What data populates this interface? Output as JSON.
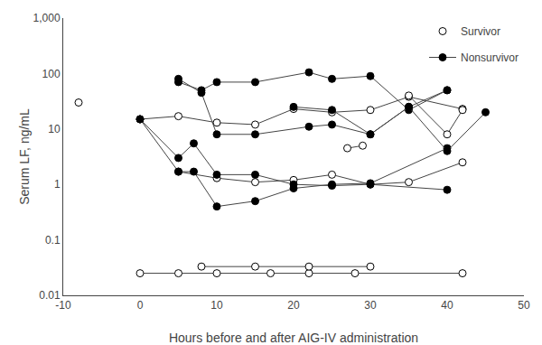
{
  "chart_data": {
    "type": "line",
    "xlabel": "Hours before and after AIG-IV administration",
    "ylabel": "Serum LF, ng/mL",
    "log": "y",
    "grid": false,
    "legend": "upper right",
    "color": "#444444",
    "xlim": [
      -10,
      50
    ],
    "ylim": [
      0.01,
      1000
    ],
    "xticks": [
      -10,
      0,
      10,
      20,
      30,
      40,
      50
    ],
    "yticks": [
      0.01,
      0.1,
      1,
      10,
      100,
      {
        "value": 1000,
        "label": "1,000"
      }
    ],
    "series": [
      {
        "name": "Survivor",
        "marker": "circle-open",
        "line_style": "none",
        "x": [
          -8
        ],
        "values": [
          30
        ]
      },
      {
        "name": "Survivor",
        "marker": "circle-open",
        "line_style": "solid",
        "x": [
          0,
          5,
          10,
          17,
          22,
          28,
          42
        ],
        "values": [
          0.025,
          0.025,
          0.025,
          0.025,
          0.025,
          0.025,
          0.025
        ]
      },
      {
        "name": "Survivor",
        "marker": "circle-open",
        "line_style": "solid",
        "x": [
          8,
          15,
          22,
          30
        ],
        "values": [
          0.033,
          0.033,
          0.033,
          0.033
        ]
      },
      {
        "name": "Survivor",
        "marker": "circle-open",
        "line_style": "solid",
        "x": [
          0,
          5,
          10,
          15,
          20,
          25,
          30,
          35,
          42
        ],
        "values": [
          15,
          17,
          13,
          12,
          23,
          20,
          22,
          38,
          23
        ]
      },
      {
        "name": "Survivor",
        "marker": "circle-open",
        "line_style": "solid",
        "x": [
          5,
          10,
          15,
          20,
          25,
          30,
          35,
          42
        ],
        "values": [
          1.7,
          1.3,
          1.1,
          1.2,
          1.5,
          1.0,
          1.1,
          2.5
        ]
      },
      {
        "name": "Survivor",
        "marker": "circle-open",
        "line_style": "solid",
        "x": [
          27,
          29
        ],
        "values": [
          4.5,
          5.0
        ]
      },
      {
        "name": "Survivor",
        "marker": "circle-open",
        "line_style": "solid",
        "x": [
          35,
          40,
          42
        ],
        "values": [
          40,
          8,
          22
        ]
      },
      {
        "name": "Nonsurvivor",
        "marker": "circle",
        "line_style": "solid",
        "x": [
          0,
          5,
          7,
          10,
          15,
          20,
          25,
          30,
          40
        ],
        "values": [
          15,
          3.0,
          5.5,
          1.5,
          1.5,
          1.0,
          0.95,
          1.0,
          0.8
        ]
      },
      {
        "name": "Nonsurvivor",
        "marker": "circle",
        "line_style": "solid",
        "x": [
          0,
          5,
          7,
          10,
          15,
          20,
          25,
          30,
          40
        ],
        "values": [
          15,
          1.7,
          1.7,
          0.4,
          0.5,
          0.85,
          1.0,
          1.05,
          4.5
        ]
      },
      {
        "name": "Nonsurvivor",
        "marker": "circle",
        "line_style": "solid",
        "x": [
          5,
          8,
          10,
          15,
          22,
          25,
          30,
          35,
          40
        ],
        "values": [
          70,
          50,
          70,
          70,
          105,
          80,
          90,
          22,
          50
        ]
      },
      {
        "name": "Nonsurvivor",
        "marker": "circle",
        "line_style": "solid",
        "x": [
          5,
          8,
          10,
          15,
          22,
          25,
          30,
          35,
          40
        ],
        "values": [
          80,
          45,
          8,
          8,
          11,
          12,
          8,
          25,
          50
        ]
      },
      {
        "name": "Nonsurvivor",
        "marker": "circle",
        "line_style": "solid",
        "x": [
          20,
          25,
          30,
          35,
          40,
          45
        ],
        "values": [
          25,
          22,
          8,
          25,
          4,
          20
        ]
      }
    ]
  }
}
